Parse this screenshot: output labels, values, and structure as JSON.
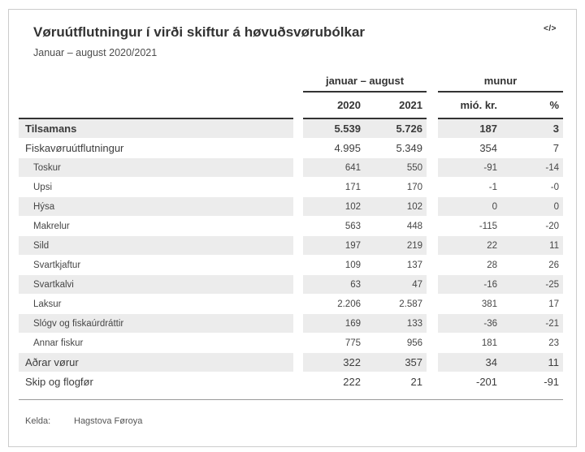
{
  "header": {
    "title": "Vøruútflutningur í virði skiftur á høvuðsvørubólkar",
    "subtitle": "Januar – august 2020/2021",
    "embed_icon": "</>"
  },
  "chart_data": {
    "type": "table",
    "title": "Vøruútflutningur í virði skiftur á høvuðsvørubólkar",
    "subtitle": "Januar – august 2020/2021",
    "column_groups": [
      "januar – august",
      "munur"
    ],
    "columns": [
      "2020",
      "2021",
      "mió. kr.",
      "%"
    ],
    "rows": [
      {
        "label": "Tilsamans",
        "level": "total",
        "values": [
          "5.539",
          "5.726",
          "187",
          "3"
        ]
      },
      {
        "label": "Fiskavøruútflutningur",
        "level": "main",
        "values": [
          "4.995",
          "5.349",
          "354",
          "7"
        ]
      },
      {
        "label": "Toskur",
        "level": "sub",
        "values": [
          "641",
          "550",
          "-91",
          "-14"
        ]
      },
      {
        "label": "Upsi",
        "level": "sub",
        "values": [
          "171",
          "170",
          "-1",
          "-0"
        ]
      },
      {
        "label": "Hýsa",
        "level": "sub",
        "values": [
          "102",
          "102",
          "0",
          "0"
        ]
      },
      {
        "label": "Makrelur",
        "level": "sub",
        "values": [
          "563",
          "448",
          "-115",
          "-20"
        ]
      },
      {
        "label": "Sild",
        "level": "sub",
        "values": [
          "197",
          "219",
          "22",
          "11"
        ]
      },
      {
        "label": "Svartkjaftur",
        "level": "sub",
        "values": [
          "109",
          "137",
          "28",
          "26"
        ]
      },
      {
        "label": "Svartkalvi",
        "level": "sub",
        "values": [
          "63",
          "47",
          "-16",
          "-25"
        ]
      },
      {
        "label": "Laksur",
        "level": "sub",
        "values": [
          "2.206",
          "2.587",
          "381",
          "17"
        ]
      },
      {
        "label": "Slógv og fiskaúrdráttir",
        "level": "sub",
        "values": [
          "169",
          "133",
          "-36",
          "-21"
        ]
      },
      {
        "label": "Annar fiskur",
        "level": "sub",
        "values": [
          "775",
          "956",
          "181",
          "23"
        ]
      },
      {
        "label": "Aðrar vørur",
        "level": "main",
        "values": [
          "322",
          "357",
          "34",
          "11"
        ]
      },
      {
        "label": "Skip og flogfør",
        "level": "main",
        "values": [
          "222",
          "21",
          "-201",
          "-91"
        ]
      }
    ],
    "source": "Hagstova Føroya",
    "layout": {
      "stripe_color": "#ececec",
      "header_line_color": "#333333",
      "bottom_rule_color": "#999999",
      "card_border_color": "#cccccc",
      "text_color": "#3d3d3d"
    }
  },
  "footer": {
    "source_label": "Kelda:",
    "source_value": "Hagstova Føroya"
  }
}
